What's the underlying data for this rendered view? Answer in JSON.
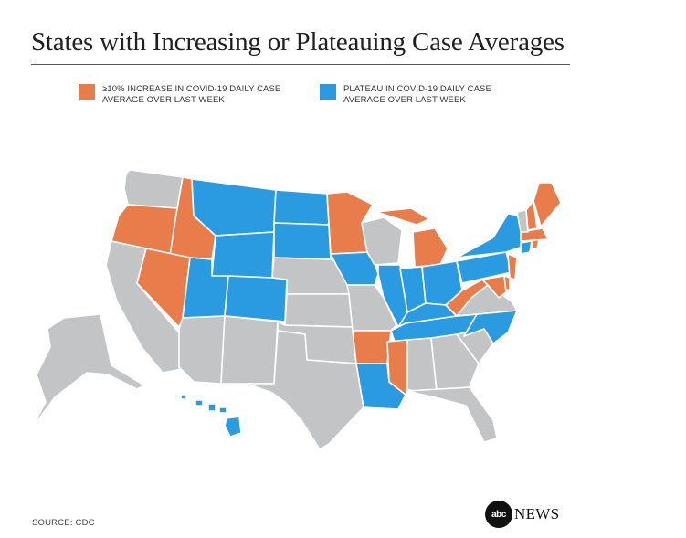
{
  "title": "States with Increasing or Plateauing Case Averages",
  "legend": {
    "increase": {
      "line1": "≥10% INCREASE IN COVID-19 DAILY CASE",
      "line2": "AVERAGE OVER LAST WEEK",
      "color": "#E87C4B"
    },
    "plateau": {
      "line1": "PLATEAU IN COVID-19 DAILY CASE",
      "line2": "AVERAGE OVER LAST WEEK",
      "color": "#2A9BE0"
    },
    "other_color": "#C2C4C6"
  },
  "source": "SOURCE: CDC",
  "brand": {
    "logo": "abc",
    "text": "NEWS"
  },
  "states": {
    "WA": "other",
    "OR": "increase",
    "ID": "increase",
    "MT": "plateau",
    "WY": "plateau",
    "CA": "other",
    "NV": "increase",
    "UT": "plateau",
    "AZ": "other",
    "CO": "plateau",
    "NM": "other",
    "ND": "plateau",
    "SD": "plateau",
    "NE": "other",
    "KS": "other",
    "OK": "other",
    "TX": "other",
    "MN": "increase",
    "IA": "plateau",
    "MO": "other",
    "AR": "increase",
    "LA": "plateau",
    "WI": "other",
    "IL": "plateau",
    "MI": "increase",
    "IN": "plateau",
    "OH": "plateau",
    "KY": "plateau",
    "TN": "plateau",
    "MS": "increase",
    "AL": "other",
    "GA": "other",
    "FL": "other",
    "SC": "other",
    "NC": "plateau",
    "VA": "other",
    "WV": "increase",
    "PA": "plateau",
    "NY": "plateau",
    "VT": "other",
    "NH": "increase",
    "ME": "increase",
    "MA": "increase",
    "CT": "plateau",
    "RI": "increase",
    "NJ": "increase",
    "DE": "increase",
    "MD": "increase",
    "AK": "other",
    "HI": "plateau"
  }
}
